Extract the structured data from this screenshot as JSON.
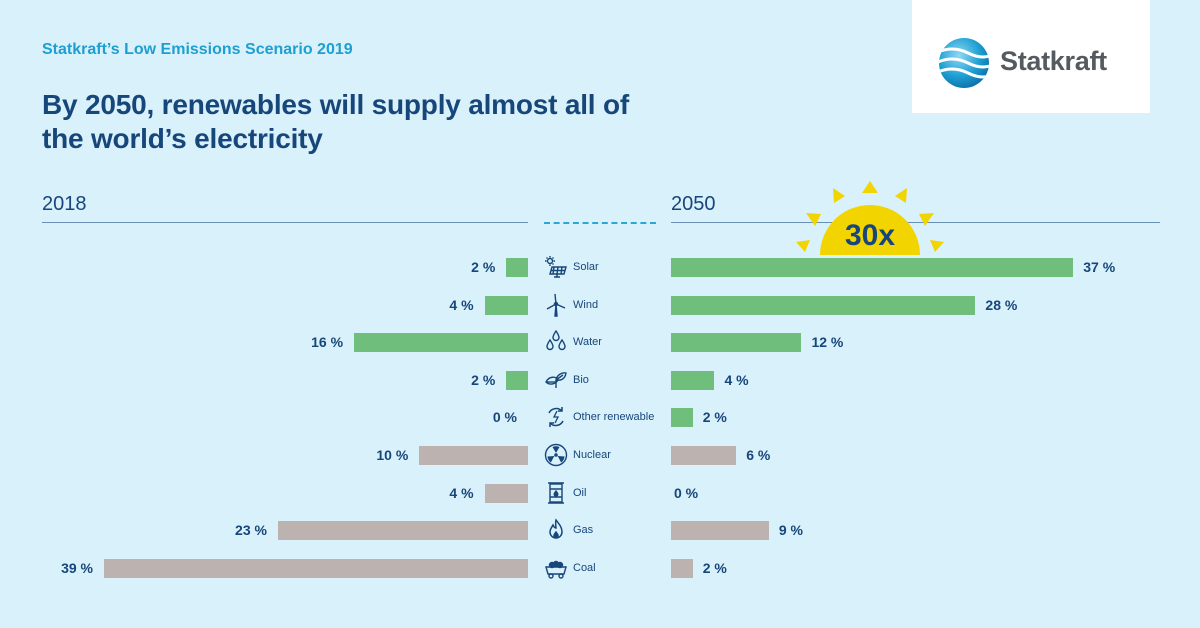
{
  "header": {
    "subtitle": "Statkraft’s Low Emissions Scenario 2019",
    "title": "By 2050, renewables will supply almost all of the world’s electricity"
  },
  "logo": {
    "text": "Statkraft",
    "icon": "globe-wave-logo-icon"
  },
  "badge": {
    "text": "30x",
    "icon": "sun-icon",
    "color": "#f2d400"
  },
  "colors": {
    "renewable": "#6fbe7b",
    "nonrenewable": "#bcb3b0",
    "text": "#17467a",
    "accent": "#1d9fd2"
  },
  "chart_data": {
    "type": "bar",
    "layout": "diverging",
    "title": "By 2050, renewables will supply almost all of the world’s electricity",
    "categories": [
      "Solar",
      "Wind",
      "Water",
      "Bio",
      "Other renewable",
      "Nuclear",
      "Oil",
      "Gas",
      "Coal"
    ],
    "renewable": [
      true,
      true,
      true,
      true,
      true,
      false,
      false,
      false,
      false
    ],
    "icons": [
      "solar-panel-icon",
      "wind-turbine-icon",
      "water-drops-icon",
      "leaf-icon",
      "recycle-icon",
      "radiation-icon",
      "oil-barrel-icon",
      "gas-flame-icon",
      "coal-cart-icon"
    ],
    "unit": "%",
    "series": [
      {
        "name": "2018",
        "values": [
          2,
          4,
          16,
          2,
          0,
          10,
          4,
          23,
          39
        ]
      },
      {
        "name": "2050",
        "values": [
          37,
          28,
          12,
          4,
          2,
          6,
          0,
          9,
          2
        ]
      }
    ],
    "xlim": [
      0,
      39
    ],
    "grid": false,
    "legend": "none"
  }
}
